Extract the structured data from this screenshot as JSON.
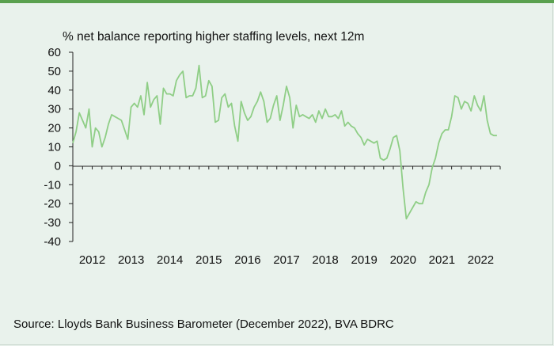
{
  "chart_data": {
    "type": "line",
    "title": "% net balance reporting higher staffing levels, next 12m",
    "source": "Source: Lloyds Bank Business Barometer (December 2022), BVA BDRC",
    "ylim": [
      -40,
      60
    ],
    "yticks": [
      "60",
      "50",
      "40",
      "30",
      "20",
      "10",
      "0",
      "-10",
      "-20",
      "-30",
      "-40"
    ],
    "xticks": [
      "2012",
      "2013",
      "2014",
      "2015",
      "2016",
      "2017",
      "2018",
      "2019",
      "2020",
      "2021",
      "2022"
    ],
    "grid": false,
    "color": "#8fce86",
    "series": [
      {
        "x": [
          "2012-01",
          "2012-02",
          "2012-03",
          "2012-04",
          "2012-05",
          "2012-06",
          "2012-07",
          "2012-08",
          "2012-09",
          "2012-10",
          "2012-11",
          "2012-12",
          "2013-01",
          "2013-02",
          "2013-03",
          "2013-04",
          "2013-05",
          "2013-06",
          "2013-07",
          "2013-08",
          "2013-09",
          "2013-10",
          "2013-11",
          "2013-12",
          "2014-01",
          "2014-02",
          "2014-03",
          "2014-04",
          "2014-05",
          "2014-06",
          "2014-07",
          "2014-08",
          "2014-09",
          "2014-10",
          "2014-11",
          "2014-12",
          "2015-01",
          "2015-02",
          "2015-03",
          "2015-04",
          "2015-05",
          "2015-06",
          "2015-07",
          "2015-08",
          "2015-09",
          "2015-10",
          "2015-11",
          "2015-12",
          "2016-01",
          "2016-02",
          "2016-03",
          "2016-04",
          "2016-05",
          "2016-06",
          "2016-07",
          "2016-08",
          "2016-09",
          "2016-10",
          "2016-11",
          "2016-12",
          "2017-01",
          "2017-02",
          "2017-03",
          "2017-04",
          "2017-05",
          "2017-06",
          "2017-07",
          "2017-08",
          "2017-09",
          "2017-10",
          "2017-11",
          "2017-12",
          "2018-01",
          "2018-02",
          "2018-03",
          "2018-04",
          "2018-05",
          "2018-06",
          "2018-07",
          "2018-08",
          "2018-09",
          "2018-10",
          "2018-11",
          "2018-12",
          "2019-01",
          "2019-02",
          "2019-03",
          "2019-04",
          "2019-05",
          "2019-06",
          "2019-07",
          "2019-08",
          "2019-09",
          "2019-10",
          "2019-11",
          "2019-12",
          "2020-01",
          "2020-02",
          "2020-03",
          "2020-04",
          "2020-05",
          "2020-06",
          "2020-07",
          "2020-08",
          "2020-09",
          "2020-10",
          "2020-11",
          "2020-12",
          "2021-01",
          "2021-02",
          "2021-03",
          "2021-04",
          "2021-05",
          "2021-06",
          "2021-07",
          "2021-08",
          "2021-09",
          "2021-10",
          "2021-11",
          "2021-12",
          "2022-01",
          "2022-02",
          "2022-03",
          "2022-04",
          "2022-05",
          "2022-06",
          "2022-07",
          "2022-08",
          "2022-09",
          "2022-10",
          "2022-11",
          "2022-12"
        ],
        "values": [
          12,
          18,
          28,
          24,
          20,
          30,
          10,
          20,
          18,
          10,
          15,
          22,
          27,
          26,
          25,
          24,
          19,
          14,
          31,
          33,
          31,
          37,
          27,
          44,
          31,
          35,
          37,
          22,
          41,
          38,
          38,
          37,
          45,
          48,
          50,
          36,
          37,
          37,
          41,
          53,
          36,
          37,
          45,
          42,
          23,
          24,
          36,
          38,
          31,
          33,
          21,
          13,
          34,
          28,
          24,
          26,
          31,
          34,
          39,
          34,
          23,
          25,
          32,
          37,
          24,
          32,
          42,
          36,
          20,
          32,
          26,
          27,
          26,
          25,
          27,
          23,
          29,
          25,
          30,
          26,
          26,
          27,
          25,
          29,
          21,
          23,
          21,
          20,
          17,
          15,
          11,
          14,
          13,
          12,
          13,
          4,
          3,
          4,
          9,
          15,
          16,
          8,
          -12,
          -28,
          -25,
          -22,
          -19,
          -20,
          -20,
          -14,
          -10,
          -1,
          4,
          12,
          17,
          19,
          19,
          26,
          37,
          36,
          30,
          34,
          33,
          29,
          37,
          32,
          29,
          37,
          24,
          17,
          16,
          16
        ]
      }
    ]
  }
}
